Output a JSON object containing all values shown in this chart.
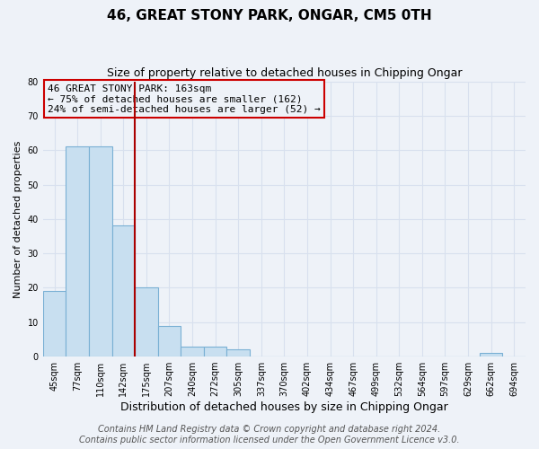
{
  "title": "46, GREAT STONY PARK, ONGAR, CM5 0TH",
  "subtitle": "Size of property relative to detached houses in Chipping Ongar",
  "xlabel": "Distribution of detached houses by size in Chipping Ongar",
  "ylabel": "Number of detached properties",
  "bar_labels": [
    "45sqm",
    "77sqm",
    "110sqm",
    "142sqm",
    "175sqm",
    "207sqm",
    "240sqm",
    "272sqm",
    "305sqm",
    "337sqm",
    "370sqm",
    "402sqm",
    "434sqm",
    "467sqm",
    "499sqm",
    "532sqm",
    "564sqm",
    "597sqm",
    "629sqm",
    "662sqm",
    "694sqm"
  ],
  "bar_values": [
    19,
    61,
    61,
    38,
    20,
    9,
    3,
    3,
    2,
    0,
    0,
    0,
    0,
    0,
    0,
    0,
    0,
    0,
    0,
    1,
    0
  ],
  "bar_color": "#c8dff0",
  "bar_edge_color": "#7ab0d4",
  "ylim": [
    0,
    80
  ],
  "yticks": [
    0,
    10,
    20,
    30,
    40,
    50,
    60,
    70,
    80
  ],
  "vline_x_idx": 3.5,
  "vline_color": "#aa0000",
  "annotation_title": "46 GREAT STONY PARK: 163sqm",
  "annotation_line2": "← 75% of detached houses are smaller (162)",
  "annotation_line3": "24% of semi-detached houses are larger (52) →",
  "annotation_box_color": "#cc0000",
  "footer_line1": "Contains HM Land Registry data © Crown copyright and database right 2024.",
  "footer_line2": "Contains public sector information licensed under the Open Government Licence v3.0.",
  "bg_color": "#eef2f8",
  "grid_color": "#d8e0ee",
  "title_fontsize": 11,
  "subtitle_fontsize": 9,
  "tick_fontsize": 7,
  "ylabel_fontsize": 8,
  "xlabel_fontsize": 9,
  "footer_fontsize": 7
}
